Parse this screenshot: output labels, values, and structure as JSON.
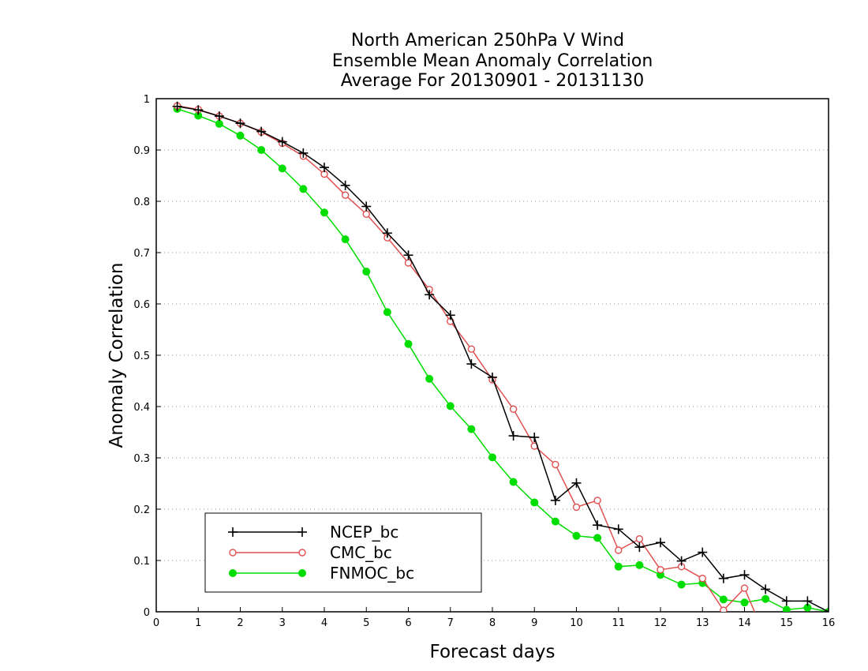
{
  "chart_data": {
    "type": "line",
    "title": [
      "North American 250hPa V Wind",
      "Ensemble Mean Anomaly Correlation",
      "Average For 20130901 - 20131130"
    ],
    "xlabel": "Forecast days",
    "ylabel": "Anomaly Correlation",
    "xlim": [
      0,
      16
    ],
    "ylim": [
      0,
      1
    ],
    "xticks": [
      "0",
      "1",
      "2",
      "3",
      "4",
      "5",
      "6",
      "7",
      "8",
      "9",
      "10",
      "11",
      "12",
      "13",
      "14",
      "15",
      "16"
    ],
    "yticks": [
      "0",
      "0.1",
      "0.2",
      "0.3",
      "0.4",
      "0.5",
      "0.6",
      "0.7",
      "0.8",
      "0.9",
      "1"
    ],
    "grid": "dotted horizontal",
    "legend_position": "bottom-left",
    "x": [
      0.5,
      1,
      1.5,
      2,
      2.5,
      3,
      3.5,
      4,
      4.5,
      5,
      5.5,
      6,
      6.5,
      7,
      7.5,
      8,
      8.5,
      9,
      9.5,
      10,
      10.5,
      11,
      11.5,
      12,
      12.5,
      13,
      13.5,
      14,
      14.5,
      15,
      15.5,
      16
    ],
    "series": [
      {
        "name": "NCEP_bc",
        "color": "#000000",
        "marker": "plus",
        "values": [
          0.985,
          0.978,
          0.966,
          0.952,
          0.936,
          0.916,
          0.894,
          0.866,
          0.831,
          0.79,
          0.738,
          0.695,
          0.618,
          0.578,
          0.483,
          0.457,
          0.343,
          0.34,
          0.217,
          0.251,
          0.169,
          0.161,
          0.126,
          0.135,
          0.099,
          0.116,
          0.065,
          0.072,
          0.044,
          0.021,
          0.021,
          0.0
        ]
      },
      {
        "name": "CMC_bc",
        "color": "#e05050",
        "marker": "open-circle",
        "values": [
          0.986,
          0.979,
          0.966,
          0.952,
          0.935,
          0.913,
          0.888,
          0.853,
          0.812,
          0.775,
          0.729,
          0.68,
          0.628,
          0.566,
          0.512,
          0.452,
          0.395,
          0.323,
          0.287,
          0.204,
          0.217,
          0.12,
          0.142,
          0.082,
          0.088,
          0.065,
          0.003,
          0.046,
          -0.05,
          -0.05,
          -0.05,
          -0.05
        ]
      },
      {
        "name": "FNMOC_bc",
        "color": "#00dd00",
        "marker": "filled-circle",
        "values": [
          0.98,
          0.967,
          0.951,
          0.928,
          0.9,
          0.864,
          0.824,
          0.778,
          0.726,
          0.663,
          0.584,
          0.522,
          0.454,
          0.401,
          0.356,
          0.301,
          0.253,
          0.213,
          0.176,
          0.148,
          0.144,
          0.088,
          0.091,
          0.072,
          0.053,
          0.056,
          0.024,
          0.018,
          0.025,
          0.004,
          0.008,
          0.0
        ]
      }
    ]
  }
}
